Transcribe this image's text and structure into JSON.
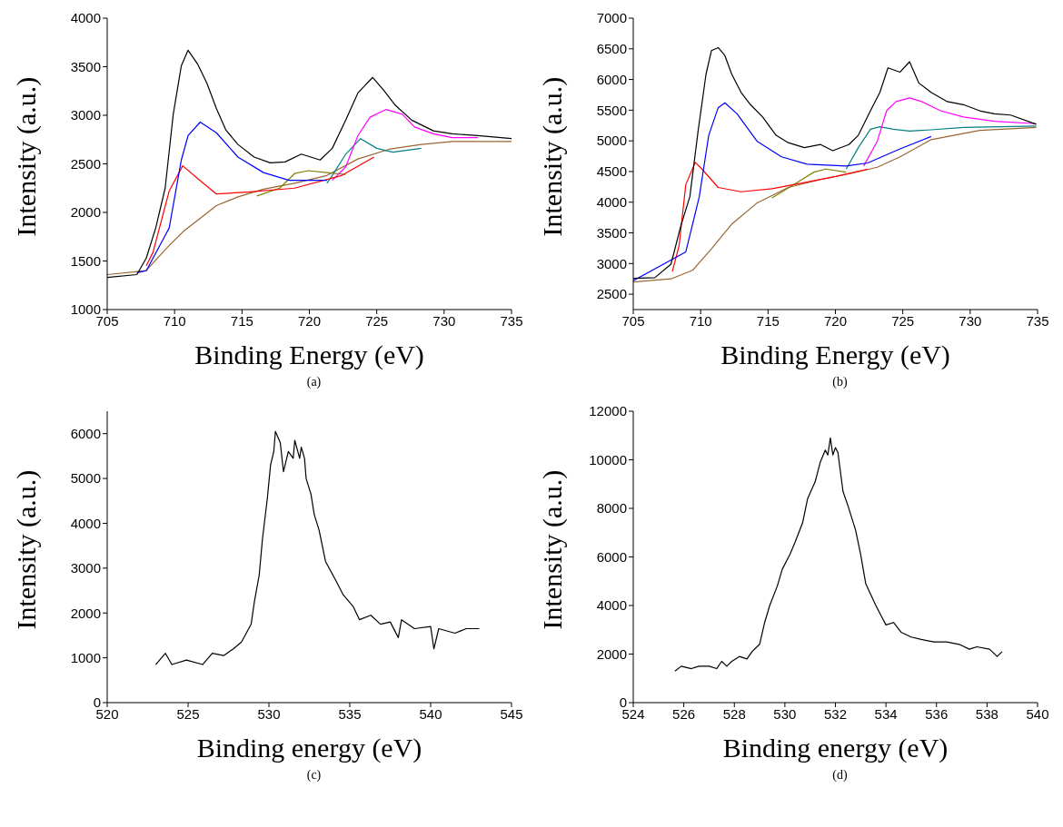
{
  "chart_data": [
    {
      "type": "line",
      "xlabel": "Binding Energy (eV)",
      "ylabel": "Intensity (a.u.)",
      "annotations": [
        "(a)"
      ],
      "xlim": [
        705,
        735
      ],
      "xticks": [
        705,
        710,
        715,
        720,
        725,
        730,
        735
      ],
      "ylim": [
        1000,
        4000
      ],
      "yticks": [
        1000,
        1500,
        2000,
        2500,
        3000,
        3500,
        4000
      ],
      "marker": "none",
      "line_style": "solid",
      "series": [
        {
          "color": "#996633",
          "x": [
            705,
            707.9,
            708.4,
            709.6,
            710.7,
            711.9,
            713.1,
            714.7,
            716.6,
            718.9,
            721.3,
            723.6,
            725.9,
            728.3,
            730.6,
            735
          ],
          "values": [
            1360,
            1400,
            1480,
            1660,
            1810,
            1940,
            2070,
            2160,
            2240,
            2300,
            2380,
            2550,
            2650,
            2700,
            2730,
            2730
          ]
        },
        {
          "color": "#808000",
          "x": [
            716.1,
            717.8,
            718.9,
            719.9,
            721.3,
            722.7
          ],
          "values": [
            2170,
            2250,
            2400,
            2430,
            2410,
            2390
          ]
        },
        {
          "color": "#008080",
          "x": [
            721.3,
            721.7,
            722.7,
            723.8,
            725.0,
            726.2,
            728.3
          ],
          "values": [
            2300,
            2380,
            2600,
            2760,
            2660,
            2620,
            2660
          ]
        },
        {
          "color": "#ff00ff",
          "x": [
            721.7,
            722.7,
            723.6,
            724.5,
            725.7,
            726.9,
            727.8,
            729.2,
            730.6,
            732.5
          ],
          "values": [
            2330,
            2470,
            2790,
            2980,
            3060,
            3010,
            2880,
            2810,
            2770,
            2770
          ]
        },
        {
          "color": "#ff0000",
          "x": [
            707.9,
            708.4,
            709.6,
            710.6,
            711.7,
            713.1,
            715.4,
            718.9,
            722.4,
            724.8
          ],
          "values": [
            1450,
            1590,
            2220,
            2480,
            2350,
            2190,
            2210,
            2250,
            2380,
            2570
          ]
        },
        {
          "color": "#0000ff",
          "x": [
            707.2,
            707.9,
            709.6,
            710.5,
            711.0,
            711.9,
            713.1,
            714.7,
            716.6,
            718.5,
            721.3
          ],
          "values": [
            1380,
            1400,
            1840,
            2540,
            2790,
            2930,
            2820,
            2570,
            2410,
            2330,
            2330
          ]
        },
        {
          "color": "#000000",
          "x": [
            705,
            707.2,
            707.9,
            708.6,
            709.3,
            709.9,
            710.5,
            711.0,
            711.7,
            712.4,
            713.1,
            713.8,
            714.7,
            715.9,
            717.1,
            718.2,
            719.4,
            720.8,
            721.7,
            722.7,
            723.6,
            724.7,
            725.5,
            726.4,
            727.6,
            729.2,
            730.6,
            732.5,
            735
          ],
          "values": [
            1330,
            1360,
            1530,
            1840,
            2250,
            3010,
            3510,
            3670,
            3530,
            3330,
            3070,
            2850,
            2700,
            2570,
            2510,
            2520,
            2600,
            2540,
            2660,
            2950,
            3230,
            3390,
            3260,
            3100,
            2950,
            2840,
            2810,
            2790,
            2760
          ]
        }
      ]
    },
    {
      "type": "line",
      "xlabel": "Binding Energy (eV)",
      "ylabel": "Intensity (a.u.)",
      "annotations": [
        "(b)"
      ],
      "xlim": [
        705,
        735
      ],
      "xticks": [
        705,
        710,
        715,
        720,
        725,
        730,
        735
      ],
      "ylim": [
        2250,
        7000
      ],
      "yticks": [
        2500,
        3000,
        3500,
        4000,
        4500,
        5000,
        5500,
        6000,
        6500,
        7000
      ],
      "marker": "none",
      "line_style": "solid",
      "series": [
        {
          "color": "#996633",
          "x": [
            705,
            707.8,
            709.4,
            710.8,
            712.3,
            714.2,
            716.5,
            718.9,
            721.2,
            723.1,
            724.8,
            727.1,
            730.7,
            734.9
          ],
          "values": [
            2700,
            2750,
            2890,
            3240,
            3640,
            3990,
            4240,
            4370,
            4470,
            4570,
            4740,
            5020,
            5170,
            5220
          ]
        },
        {
          "color": "#808000",
          "x": [
            715.3,
            717.3,
            718.4,
            719.3,
            720.8
          ],
          "values": [
            4070,
            4340,
            4490,
            4540,
            4490
          ]
        },
        {
          "color": "#008080",
          "x": [
            720.8,
            721.7,
            722.6,
            723.3,
            724.3,
            725.5,
            727.1,
            729.5,
            734.9
          ],
          "values": [
            4540,
            4890,
            5190,
            5230,
            5190,
            5160,
            5180,
            5220,
            5240
          ]
        },
        {
          "color": "#ff00ff",
          "x": [
            722.1,
            723.1,
            723.8,
            724.5,
            725.5,
            726.4,
            727.8,
            729.5,
            731.8,
            734.9
          ],
          "values": [
            4590,
            4990,
            5490,
            5640,
            5700,
            5640,
            5490,
            5390,
            5320,
            5280
          ]
        },
        {
          "color": "#ff0000",
          "x": [
            707.9,
            708.4,
            708.9,
            709.6,
            710.1,
            711.3,
            713.0,
            715.3,
            717.7,
            720.0,
            722.4
          ],
          "values": [
            2870,
            3290,
            4290,
            4650,
            4540,
            4240,
            4170,
            4220,
            4320,
            4420,
            4540
          ]
        },
        {
          "color": "#0000ff",
          "x": [
            705,
            708.9,
            709.9,
            710.6,
            711.3,
            711.8,
            712.7,
            714.2,
            716.0,
            717.9,
            720.8,
            722.4,
            724.8,
            727.1
          ],
          "values": [
            2720,
            3190,
            4090,
            5090,
            5540,
            5620,
            5440,
            4990,
            4740,
            4620,
            4590,
            4640,
            4870,
            5070
          ]
        },
        {
          "color": "#000000",
          "x": [
            705,
            706.6,
            707.8,
            708.5,
            709.2,
            709.8,
            710.4,
            710.8,
            711.3,
            711.8,
            712.3,
            713.0,
            713.7,
            714.6,
            715.6,
            716.5,
            717.7,
            718.9,
            719.8,
            721.0,
            721.7,
            722.6,
            723.3,
            723.9,
            724.8,
            725.5,
            726.2,
            727.1,
            728.3,
            729.5,
            730.7,
            731.8,
            733.0,
            734.9
          ],
          "values": [
            2760,
            2770,
            2990,
            3590,
            4090,
            5140,
            6090,
            6470,
            6520,
            6390,
            6090,
            5790,
            5590,
            5390,
            5090,
            4970,
            4890,
            4940,
            4840,
            4940,
            5090,
            5490,
            5790,
            6190,
            6120,
            6290,
            5940,
            5790,
            5640,
            5590,
            5490,
            5440,
            5420,
            5270
          ]
        }
      ]
    },
    {
      "type": "line",
      "xlabel": "Binding energy (eV)",
      "ylabel": "Intensity (a.u.)",
      "annotations": [
        "(c)"
      ],
      "xlim": [
        520,
        545
      ],
      "xticks": [
        520,
        525,
        530,
        535,
        540,
        545
      ],
      "ylim": [
        0,
        6500
      ],
      "yticks": [
        0,
        1000,
        2000,
        3000,
        4000,
        5000,
        6000
      ],
      "marker": "none",
      "line_style": "solid",
      "series": [
        {
          "color": "#000000",
          "x": [
            523.0,
            523.6,
            524.0,
            524.9,
            525.9,
            526.5,
            527.2,
            527.8,
            528.3,
            528.6,
            528.9,
            529.1,
            529.4,
            529.6,
            529.9,
            530.1,
            530.3,
            530.4,
            530.7,
            530.9,
            531.2,
            531.5,
            531.6,
            531.9,
            532.0,
            532.2,
            532.3,
            532.6,
            532.8,
            533.1,
            533.5,
            534.1,
            534.6,
            535.2,
            535.6,
            536.3,
            536.9,
            537.5,
            538.0,
            538.2,
            539.0,
            540.0,
            540.2,
            540.5,
            541.5,
            542.2,
            543.0
          ],
          "values": [
            850,
            1100,
            850,
            950,
            850,
            1100,
            1050,
            1200,
            1350,
            1550,
            1750,
            2250,
            2850,
            3650,
            4550,
            5300,
            5600,
            6050,
            5800,
            5150,
            5600,
            5450,
            5850,
            5450,
            5700,
            5450,
            5000,
            4650,
            4200,
            3850,
            3150,
            2750,
            2400,
            2150,
            1850,
            1950,
            1750,
            1800,
            1450,
            1850,
            1650,
            1700,
            1200,
            1650,
            1550,
            1650,
            1650
          ]
        }
      ]
    },
    {
      "type": "line",
      "xlabel": "Binding energy (eV)",
      "ylabel": "Intensity (a.u.)",
      "annotations": [
        "(d)"
      ],
      "xlim": [
        524,
        540
      ],
      "xticks": [
        524,
        526,
        528,
        530,
        532,
        534,
        536,
        538,
        540
      ],
      "ylim": [
        0,
        12000
      ],
      "yticks": [
        0,
        2000,
        4000,
        6000,
        8000,
        10000,
        12000
      ],
      "marker": "none",
      "line_style": "solid",
      "series": [
        {
          "color": "#000000",
          "x": [
            525.65,
            525.9,
            526.3,
            526.6,
            527.0,
            527.3,
            527.5,
            527.7,
            527.9,
            528.2,
            528.5,
            528.7,
            529.0,
            529.2,
            529.4,
            529.7,
            529.9,
            530.2,
            530.4,
            530.7,
            530.9,
            531.2,
            531.4,
            531.6,
            531.7,
            531.8,
            531.9,
            532.0,
            532.1,
            532.3,
            532.5,
            532.8,
            533.0,
            533.2,
            533.6,
            533.8,
            534.0,
            534.3,
            534.6,
            535.0,
            535.4,
            535.9,
            536.4,
            536.9,
            537.3,
            537.6,
            538.1,
            538.4,
            538.6
          ],
          "values": [
            1300,
            1500,
            1400,
            1500,
            1500,
            1400,
            1700,
            1500,
            1700,
            1900,
            1800,
            2100,
            2400,
            3300,
            4000,
            4800,
            5500,
            6100,
            6600,
            7400,
            8400,
            9100,
            9900,
            10400,
            10200,
            10900,
            10200,
            10500,
            10300,
            8700,
            8100,
            7100,
            6100,
            4900,
            4000,
            3600,
            3200,
            3300,
            2900,
            2700,
            2600,
            2500,
            2500,
            2400,
            2200,
            2300,
            2200,
            1900,
            2100
          ]
        }
      ]
    }
  ]
}
